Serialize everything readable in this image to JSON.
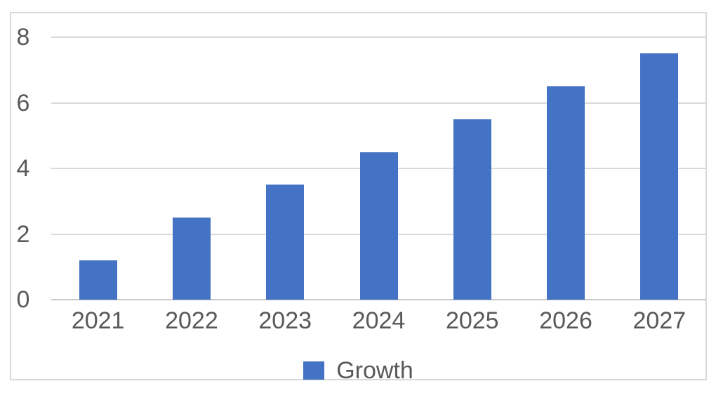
{
  "chart_data": {
    "type": "bar",
    "title": "",
    "categories": [
      "2021",
      "2022",
      "2023",
      "2024",
      "2025",
      "2026",
      "2027"
    ],
    "series": [
      {
        "name": "Growth",
        "values": [
          1.2,
          2.5,
          3.5,
          4.5,
          5.5,
          6.5,
          7.5
        ],
        "color": "#4472C4"
      }
    ],
    "xlabel": "",
    "ylabel": "",
    "ylim": [
      0,
      8
    ],
    "yticks": [
      0,
      2,
      4,
      6,
      8
    ],
    "grid": true,
    "legend_position": "bottom"
  },
  "colors": {
    "bar": "#4472C4",
    "gridline": "#D9D9D9",
    "axis_line": "#C9C9C9",
    "frame_border": "#D9D9D9",
    "text": "#595959",
    "background": "#FFFFFF"
  }
}
